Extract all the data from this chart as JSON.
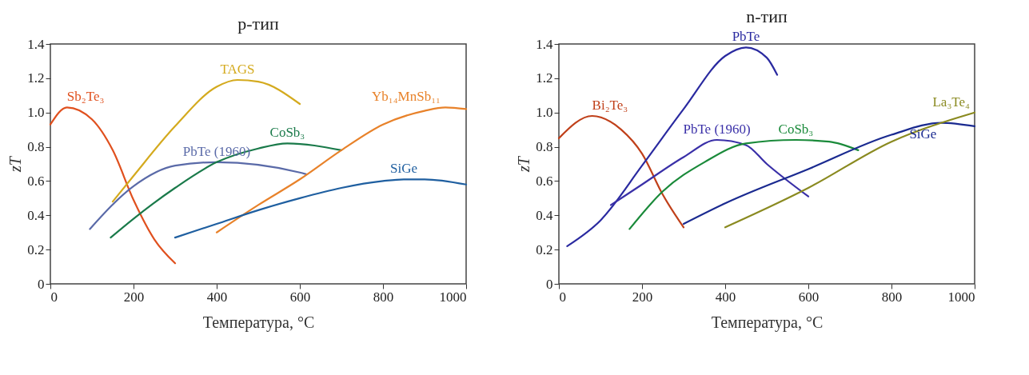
{
  "chart_data": [
    {
      "type": "line",
      "title": "p-тип",
      "xlabel": "Температура, °C",
      "ylabel": "zT",
      "xlim": [
        0,
        1000
      ],
      "ylim": [
        0,
        1.4
      ],
      "xticks": [
        0,
        200,
        400,
        600,
        800,
        1000
      ],
      "yticks": [
        0,
        0.2,
        0.4,
        0.6,
        0.8,
        {
          "value": 1,
          "label": "1.0"
        },
        1.2,
        1.4
      ],
      "grid": false,
      "legend": false,
      "series": [
        {
          "name": "Sb₂Te₃",
          "color": "#e0501e",
          "x": [
            0,
            40,
            100,
            150,
            200,
            250,
            300
          ],
          "values": [
            0.93,
            1.03,
            0.96,
            0.78,
            0.49,
            0.26,
            0.12
          ]
        },
        {
          "name": "TAGS",
          "color": "#d4aa1e",
          "x": [
            150,
            200,
            300,
            400,
            450,
            500,
            600
          ],
          "values": [
            0.48,
            0.63,
            0.92,
            1.15,
            1.19,
            1.18,
            1.05
          ]
        },
        {
          "name": "PbTe (1960)",
          "color": "#5a6aa8",
          "x": [
            95,
            200,
            300,
            400,
            600,
            615
          ],
          "values": [
            0.32,
            0.57,
            0.69,
            0.71,
            0.65,
            0.64
          ]
        },
        {
          "name": "CoSb₃",
          "color": "#1a7a4a",
          "x": [
            145,
            200,
            300,
            400,
            500,
            570,
            700
          ],
          "values": [
            0.27,
            0.38,
            0.56,
            0.71,
            0.79,
            0.82,
            0.78
          ]
        },
        {
          "name": "Yb₁₄MnSb₁₁",
          "color": "#e8822a",
          "x": [
            400,
            500,
            600,
            700,
            800,
            900,
            950,
            1000
          ],
          "values": [
            0.3,
            0.46,
            0.61,
            0.78,
            0.93,
            1.01,
            1.03,
            1.02
          ]
        },
        {
          "name": "SiGe",
          "color": "#1f5fa0",
          "x": [
            300,
            400,
            500,
            600,
            700,
            800,
            850,
            900,
            1000
          ],
          "values": [
            0.27,
            0.35,
            0.43,
            0.5,
            0.56,
            0.6,
            0.61,
            0.61,
            0.58
          ]
        }
      ]
    },
    {
      "type": "line",
      "title": "n-тип",
      "xlabel": "Температура, °C",
      "ylabel": "zT",
      "xlim": [
        0,
        1000
      ],
      "ylim": [
        0,
        1.4
      ],
      "xticks": [
        0,
        200,
        400,
        600,
        800,
        1000
      ],
      "yticks": [
        0,
        0.2,
        0.4,
        0.6,
        0.8,
        {
          "value": 1,
          "label": "1.0"
        },
        1.2,
        1.4
      ],
      "grid": false,
      "legend": false,
      "series": [
        {
          "name": "Bi₂Te₃",
          "color": "#c0401a",
          "x": [
            0,
            80,
            150,
            200,
            250,
            300
          ],
          "values": [
            0.85,
            0.98,
            0.9,
            0.76,
            0.52,
            0.33
          ]
        },
        {
          "name": "PbTe",
          "color": "#2a2aa0",
          "x": [
            20,
            100,
            200,
            300,
            400,
            450,
            500,
            525
          ],
          "values": [
            0.22,
            0.37,
            0.69,
            1.02,
            1.33,
            1.38,
            1.32,
            1.22
          ]
        },
        {
          "name": "PbTe (1960)",
          "color": "#3a30a8",
          "x": [
            125,
            200,
            300,
            380,
            450,
            500,
            600
          ],
          "values": [
            0.46,
            0.58,
            0.74,
            0.84,
            0.81,
            0.7,
            0.51
          ]
        },
        {
          "name": "CoSb₃",
          "color": "#1a8a3a",
          "x": [
            170,
            250,
            350,
            450,
            570,
            650,
            720
          ],
          "values": [
            0.32,
            0.54,
            0.71,
            0.82,
            0.84,
            0.83,
            0.78
          ]
        },
        {
          "name": "SiGe",
          "color": "#1a2a90",
          "x": [
            300,
            400,
            600,
            800,
            920,
            1000
          ],
          "values": [
            0.35,
            0.47,
            0.67,
            0.87,
            0.94,
            0.92
          ]
        },
        {
          "name": "La₃Te₄",
          "color": "#8a8a20",
          "x": [
            400,
            600,
            800,
            1000
          ],
          "values": [
            0.33,
            0.56,
            0.83,
            1.0
          ]
        }
      ]
    }
  ]
}
